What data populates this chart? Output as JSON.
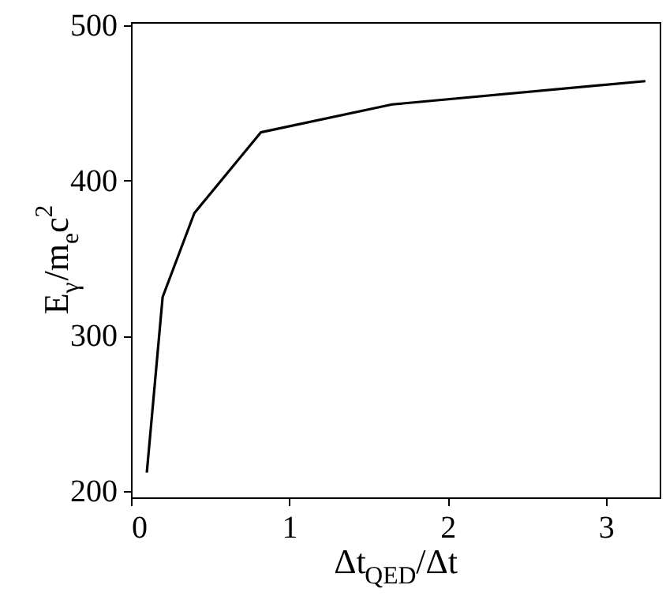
{
  "chart_data": {
    "type": "line",
    "xlabel": "Δt$_{QED}$/Δt",
    "ylabel": "E$_{γ}$/m$_{e}$c$^{2}$",
    "x": [
      0.1,
      0.2,
      0.4,
      0.82,
      1.65,
      3.25
    ],
    "series": [
      {
        "color": "#000000",
        "values": [
          212,
          325,
          379,
          431,
          449,
          464
        ]
      }
    ],
    "xlim": [
      0,
      3.34
    ],
    "ylim": [
      196,
      502
    ],
    "xticks": [
      0,
      1,
      2,
      3
    ],
    "yticks": [
      200,
      300,
      400,
      500
    ],
    "grid": false,
    "marker": "none",
    "line_style": "solid"
  }
}
